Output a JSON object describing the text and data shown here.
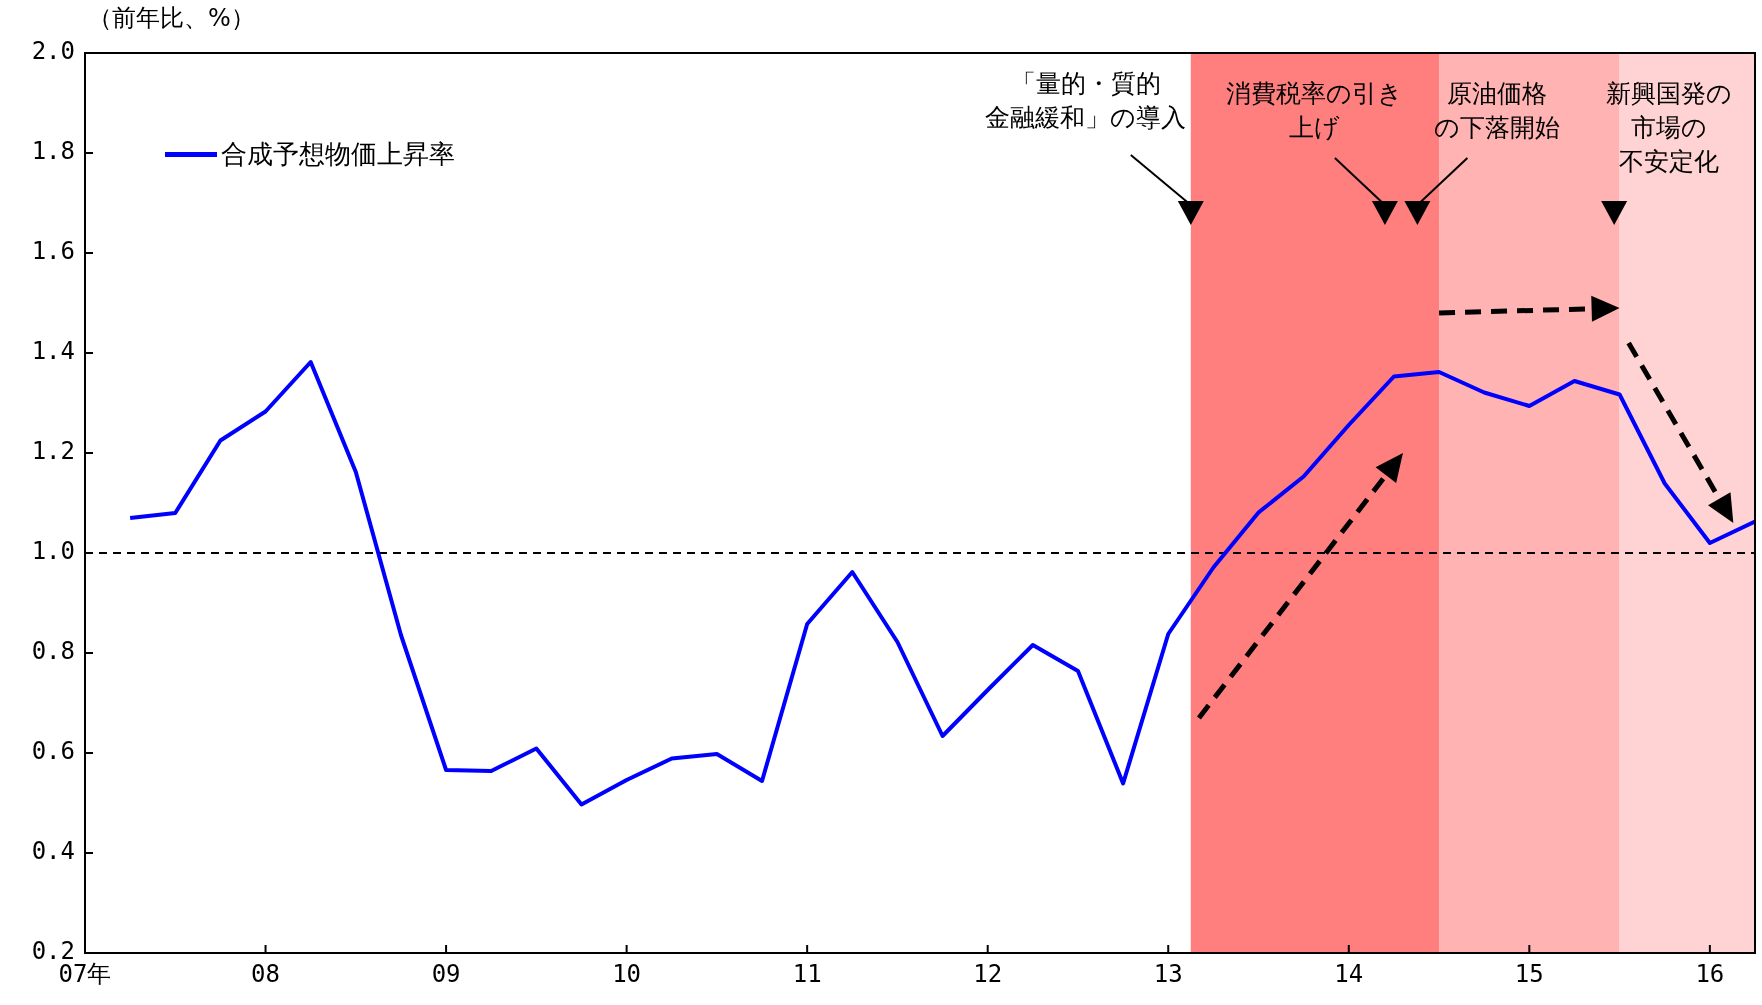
{
  "chart_data": {
    "type": "line",
    "ylabel": "（前年比、%）",
    "x": [
      7.25,
      7.5,
      7.75,
      8,
      8.25,
      8.5,
      8.75,
      9,
      9.25,
      9.5,
      9.75,
      10,
      10.25,
      10.5,
      10.75,
      11,
      11.25,
      11.5,
      11.75,
      12,
      12.25,
      12.5,
      12.75,
      13,
      13.25,
      13.5,
      13.75,
      14,
      14.25,
      14.5,
      14.75,
      15,
      15.25,
      15.5,
      15.75,
      16,
      16.25
    ],
    "series": [
      {
        "name": "合成予想物価上昇率",
        "color": "#0000ff",
        "values": [
          1.07,
          1.08,
          1.225,
          1.283,
          1.382,
          1.162,
          0.836,
          0.566,
          0.564,
          0.609,
          0.497,
          0.546,
          0.589,
          0.598,
          0.544,
          0.858,
          0.962,
          0.822,
          0.634,
          0.726,
          0.816,
          0.764,
          0.539,
          0.838,
          0.971,
          1.081,
          1.153,
          1.256,
          1.353,
          1.362,
          1.321,
          1.294,
          1.344,
          1.317,
          1.139,
          1.02,
          1.063
        ]
      }
    ],
    "xlim": [
      7,
      16.25
    ],
    "xticks": [
      {
        "value": 7,
        "label": "07年"
      },
      {
        "value": 8,
        "label": "08"
      },
      {
        "value": 9,
        "label": "09"
      },
      {
        "value": 10,
        "label": "10"
      },
      {
        "value": 11,
        "label": "11"
      },
      {
        "value": 12,
        "label": "12"
      },
      {
        "value": 13,
        "label": "13"
      },
      {
        "value": 14,
        "label": "14"
      },
      {
        "value": 15,
        "label": "15"
      },
      {
        "value": 16,
        "label": "16"
      }
    ],
    "ylim": [
      0.2,
      2
    ],
    "yticks": [
      {
        "value": 0.2,
        "label": "0.2"
      },
      {
        "value": 0.4,
        "label": "0.4"
      },
      {
        "value": 0.6,
        "label": "0.6"
      },
      {
        "value": 0.8,
        "label": "0.8"
      },
      {
        "value": 1,
        "label": "1.0"
      },
      {
        "value": 1.2,
        "label": "1.2"
      },
      {
        "value": 1.4,
        "label": "1.4"
      },
      {
        "value": 1.6,
        "label": "1.6"
      },
      {
        "value": 1.8,
        "label": "1.8"
      },
      {
        "value": 2,
        "label": "2.0"
      }
    ],
    "bands": [
      {
        "axis": "x",
        "from": 13.125,
        "to": 14.5,
        "color": "#ff7f7f"
      },
      {
        "axis": "x",
        "from": 14.5,
        "to": 15.5,
        "color": "#ffb3b3"
      },
      {
        "axis": "x",
        "from": 15.5,
        "to": 16.25,
        "color": "#ffd3d3"
      }
    ],
    "ref_lines": [
      {
        "axis": "y",
        "value": 1,
        "color": "#000000",
        "line_style": "dashed"
      }
    ],
    "annotations": [
      {
        "text": "「量的・質的金融緩和」の導入",
        "x": 13.125,
        "y": 1.68
      },
      {
        "text": "消費税率の引き上げ",
        "x": 14.2,
        "y": 1.68
      },
      {
        "text": "原油価格の下落開始",
        "x": 14.38,
        "y": 1.68
      },
      {
        "text": "新興国発の市場の不安定化",
        "x": 15.47,
        "y": 1.68
      }
    ],
    "grid": false,
    "legend": "top left",
    "marker": "none",
    "line_style": "solid"
  }
}
